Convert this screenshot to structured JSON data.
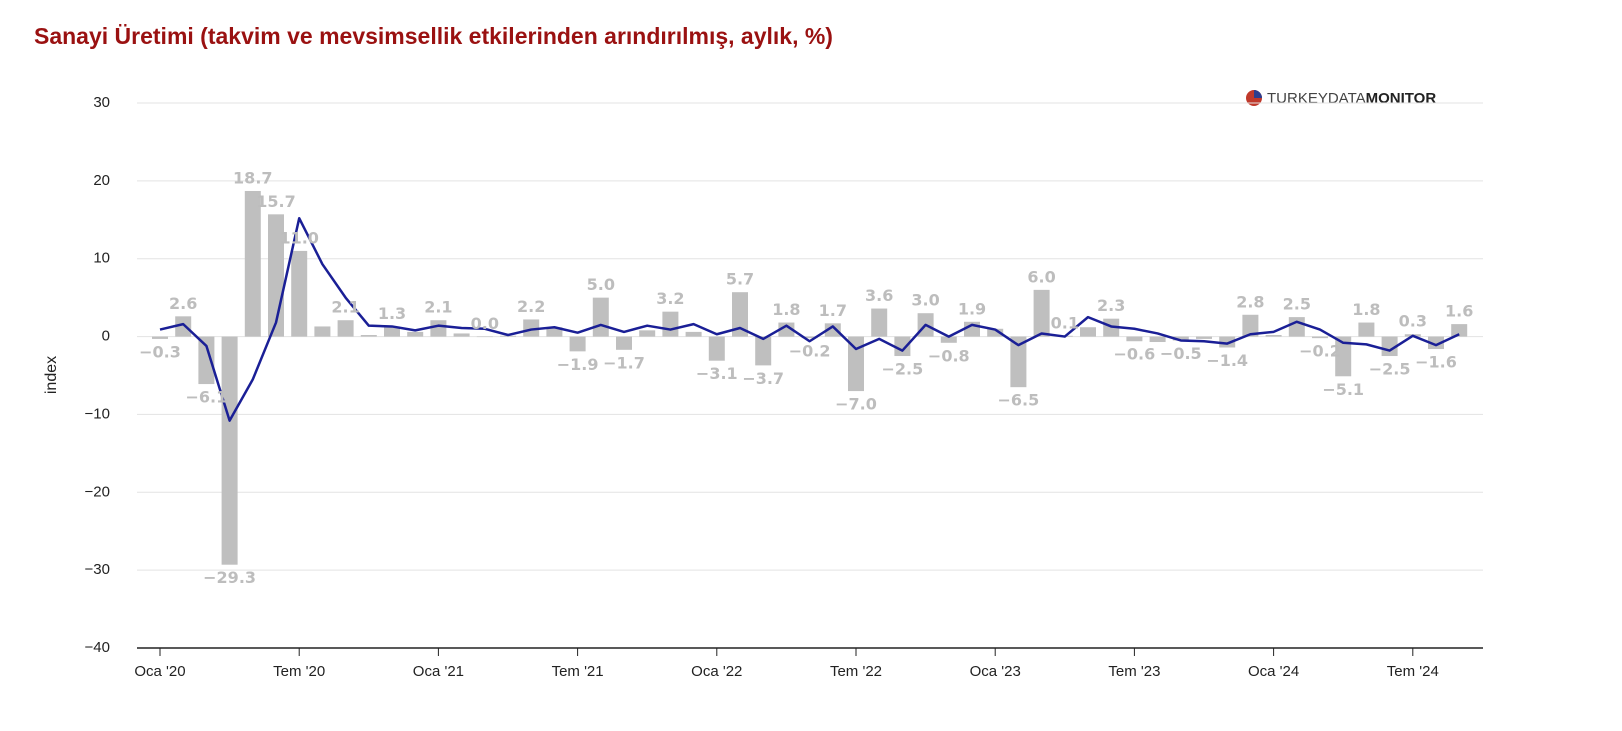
{
  "chart_data": {
    "type": "bar",
    "title": "Sanayi Üretimi (takvim ve mevsimsellik etkilerinden arındırılmış, aylık, %)",
    "ylabel": "index",
    "logo": {
      "part1": "TURKEYDATA",
      "part2": "MONITOR"
    },
    "categories": [
      "Oca '20",
      null,
      null,
      null,
      null,
      null,
      "Tem '20",
      null,
      null,
      null,
      null,
      null,
      "Oca '21",
      null,
      null,
      null,
      null,
      null,
      "Tem '21",
      null,
      null,
      null,
      null,
      null,
      "Oca '22",
      null,
      null,
      null,
      null,
      null,
      "Tem '22",
      null,
      null,
      null,
      null,
      null,
      "Oca '23",
      null,
      null,
      null,
      null,
      null,
      "Tem '23",
      null,
      null,
      null,
      null,
      null,
      "Oca '24",
      null,
      null,
      null,
      null,
      null,
      "Tem '24",
      null,
      null
    ],
    "ylim": [
      -40,
      30
    ],
    "yticks": [
      {
        "value": -40,
        "label": "−40"
      },
      {
        "value": -30,
        "label": "−30"
      },
      {
        "value": -20,
        "label": "−20"
      },
      {
        "value": -10,
        "label": "−10"
      },
      0,
      10,
      20,
      30
    ],
    "grid": true,
    "series": [
      {
        "type": "bar",
        "color": "#bfbfbf",
        "values": [
          -0.3,
          2.6,
          -6.1,
          -29.3,
          18.7,
          15.7,
          11.0,
          1.3,
          2.1,
          0.2,
          1.3,
          0.6,
          2.1,
          0.4,
          0.0,
          0.1,
          2.2,
          1.2,
          -1.9,
          5.0,
          -1.7,
          0.8,
          3.2,
          0.6,
          -3.1,
          5.7,
          -3.7,
          1.8,
          -0.2,
          1.7,
          -7.0,
          3.6,
          -2.5,
          3.0,
          -0.8,
          1.9,
          1.0,
          -6.5,
          6.0,
          0.1,
          1.2,
          2.3,
          -0.6,
          -0.7,
          -0.5,
          -0.3,
          -1.4,
          2.8,
          0.2,
          2.5,
          -0.2,
          -5.1,
          1.8,
          -2.5,
          0.3,
          -1.6,
          1.6
        ],
        "value_labels": [
          "−0.3",
          "2.6",
          "−6.1",
          "−29.3",
          "18.7",
          "15.7",
          "11.0",
          null,
          "2.1",
          null,
          "1.3",
          null,
          "2.1",
          null,
          "0.0",
          null,
          "2.2",
          null,
          "−1.9",
          "5.0",
          "−1.7",
          null,
          "3.2",
          null,
          "−3.1",
          "5.7",
          "−3.7",
          "1.8",
          "−0.2",
          "1.7",
          "−7.0",
          "3.6",
          "−2.5",
          "3.0",
          "−0.8",
          "1.9",
          null,
          "−6.5",
          "6.0",
          "0.1",
          null,
          "2.3",
          "−0.6",
          null,
          "−0.5",
          null,
          "−1.4",
          "2.8",
          null,
          "2.5",
          "−0.2",
          "−5.1",
          "1.8",
          "−2.5",
          "0.3",
          "−1.6",
          "1.6"
        ]
      },
      {
        "type": "line",
        "color": "#1a1f96",
        "values": [
          0.9,
          1.6,
          -1.2,
          -10.8,
          -5.5,
          1.8,
          15.2,
          9.3,
          5.0,
          1.4,
          1.3,
          0.8,
          1.4,
          1.1,
          1.0,
          0.2,
          0.9,
          1.2,
          0.5,
          1.5,
          0.6,
          1.4,
          0.9,
          1.6,
          0.3,
          1.1,
          -0.3,
          1.4,
          -0.6,
          1.3,
          -1.6,
          -0.3,
          -1.8,
          1.5,
          0.0,
          1.5,
          0.9,
          -1.1,
          0.4,
          0.0,
          2.5,
          1.3,
          1.0,
          0.4,
          -0.5,
          -0.6,
          -0.9,
          0.3,
          0.6,
          1.9,
          0.9,
          -0.8,
          -1.0,
          -1.8,
          0.1,
          -1.1,
          0.3
        ]
      }
    ]
  }
}
